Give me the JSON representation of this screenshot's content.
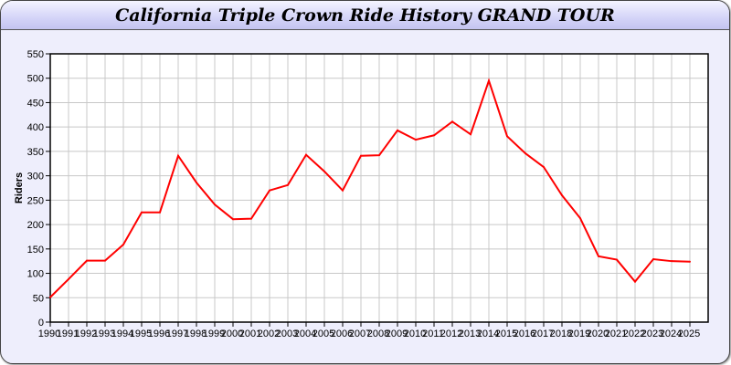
{
  "chart_data": {
    "type": "line",
    "title": "California Triple Crown Ride History GRAND TOUR",
    "xlabel": "",
    "ylabel": "Riders",
    "ylim": [
      0,
      550
    ],
    "yticks": [
      0,
      50,
      100,
      150,
      200,
      250,
      300,
      350,
      400,
      450,
      500,
      550
    ],
    "grid": true,
    "line_color": "#ff0000",
    "x": [
      1990,
      1991,
      1992,
      1993,
      1994,
      1995,
      1996,
      1997,
      1998,
      1999,
      2000,
      2001,
      2002,
      2003,
      2004,
      2005,
      2006,
      2007,
      2008,
      2009,
      2010,
      2011,
      2012,
      2013,
      2014,
      2015,
      2016,
      2017,
      2018,
      2019,
      2020,
      2021,
      2022,
      2023,
      2024,
      2025
    ],
    "values": [
      51,
      88,
      126,
      126,
      159,
      225,
      225,
      341,
      286,
      241,
      211,
      212,
      270,
      281,
      343,
      309,
      270,
      341,
      342,
      393,
      374,
      383,
      411,
      385,
      495,
      381,
      346,
      318,
      260,
      213,
      135,
      128,
      83,
      129,
      125,
      124
    ]
  }
}
